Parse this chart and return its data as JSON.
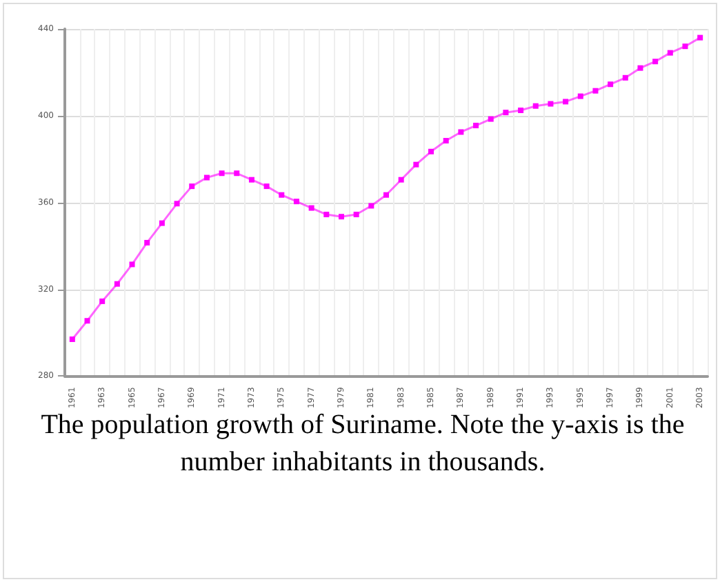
{
  "chart_data": {
    "type": "line",
    "categories": [
      "1961",
      null,
      "1963",
      null,
      "1965",
      null,
      "1967",
      null,
      "1969",
      null,
      "1971",
      null,
      "1973",
      null,
      "1975",
      null,
      "1977",
      null,
      "1979",
      null,
      "1981",
      null,
      "1983",
      null,
      "1985",
      null,
      "1987",
      null,
      "1989",
      null,
      "1991",
      null,
      "1993",
      null,
      "1995",
      null,
      "1997",
      null,
      "1999",
      null,
      "2001",
      null,
      "2003"
    ],
    "series": [
      {
        "color": "#ff00ff",
        "values": [
          297,
          305.5,
          314.5,
          322.5,
          331.5,
          341.5,
          350.5,
          359.5,
          367.5,
          371.5,
          373.5,
          373.5,
          370.5,
          367.5,
          363.5,
          360.5,
          357.5,
          354.5,
          353.5,
          354.5,
          358.5,
          363.5,
          370.5,
          377.5,
          383.5,
          388.5,
          392.5,
          395.5,
          398.5,
          401.5,
          402.5,
          404.5,
          405.5,
          406.5,
          409,
          411.5,
          414.5,
          417.5,
          422,
          425,
          429,
          432,
          436
        ]
      }
    ],
    "ylim": [
      280,
      440
    ],
    "yticks": [
      280,
      320,
      360,
      400,
      440
    ],
    "grid": true,
    "marker": "square",
    "line_style": "solid",
    "annotations": [
      "The population growth of Suriname. Note the y-axis is the number inhabitants in thousands."
    ]
  }
}
